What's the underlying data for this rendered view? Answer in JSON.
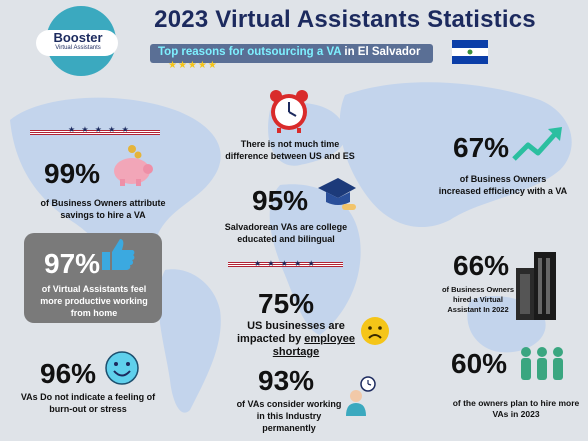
{
  "header": {
    "title": "2023 Virtual Assistants Statistics",
    "banner_highlight": "Top reasons for outsourcing a VA",
    "banner_location": "in El Salvador",
    "rating_stars": "★★★★★"
  },
  "logo": {
    "name": "Booster",
    "tagline": "Virtual Assistants"
  },
  "stats": [
    {
      "value": "99%",
      "text": "of Business Owners attribute savings to hire a VA"
    },
    {
      "value": "97%",
      "text": "of Virtual Assistants feel more productive working from home"
    },
    {
      "value": "96%",
      "text": "VAs Do not indicate a  feeling of burn-out or  stress"
    },
    {
      "value": "95%",
      "text": "Salvadorean VAs are college educated and bilingual"
    },
    {
      "value": "75%",
      "text_a": "US businesses are impacted by",
      "text_b": "employee shortage"
    },
    {
      "value": "93%",
      "text": "of VAs consider working in this Industry permanently"
    },
    {
      "value": "67%",
      "text": "of Business Owners increased efficiency with a VA"
    },
    {
      "value": "66%",
      "text": "of Business Owners hired a Virtual Assistant In 2022"
    },
    {
      "value": "60%",
      "text": "of the  owners plan to hire more VAs in 2023"
    }
  ],
  "clock_note": "There is not much time difference between US and ES",
  "star_band": "★ ★ ★ ★ ★",
  "colors": {
    "navy": "#1c2a5e",
    "teal": "#3ba9bf",
    "banner": "#5a6f95",
    "map": "#c3d4ec"
  }
}
